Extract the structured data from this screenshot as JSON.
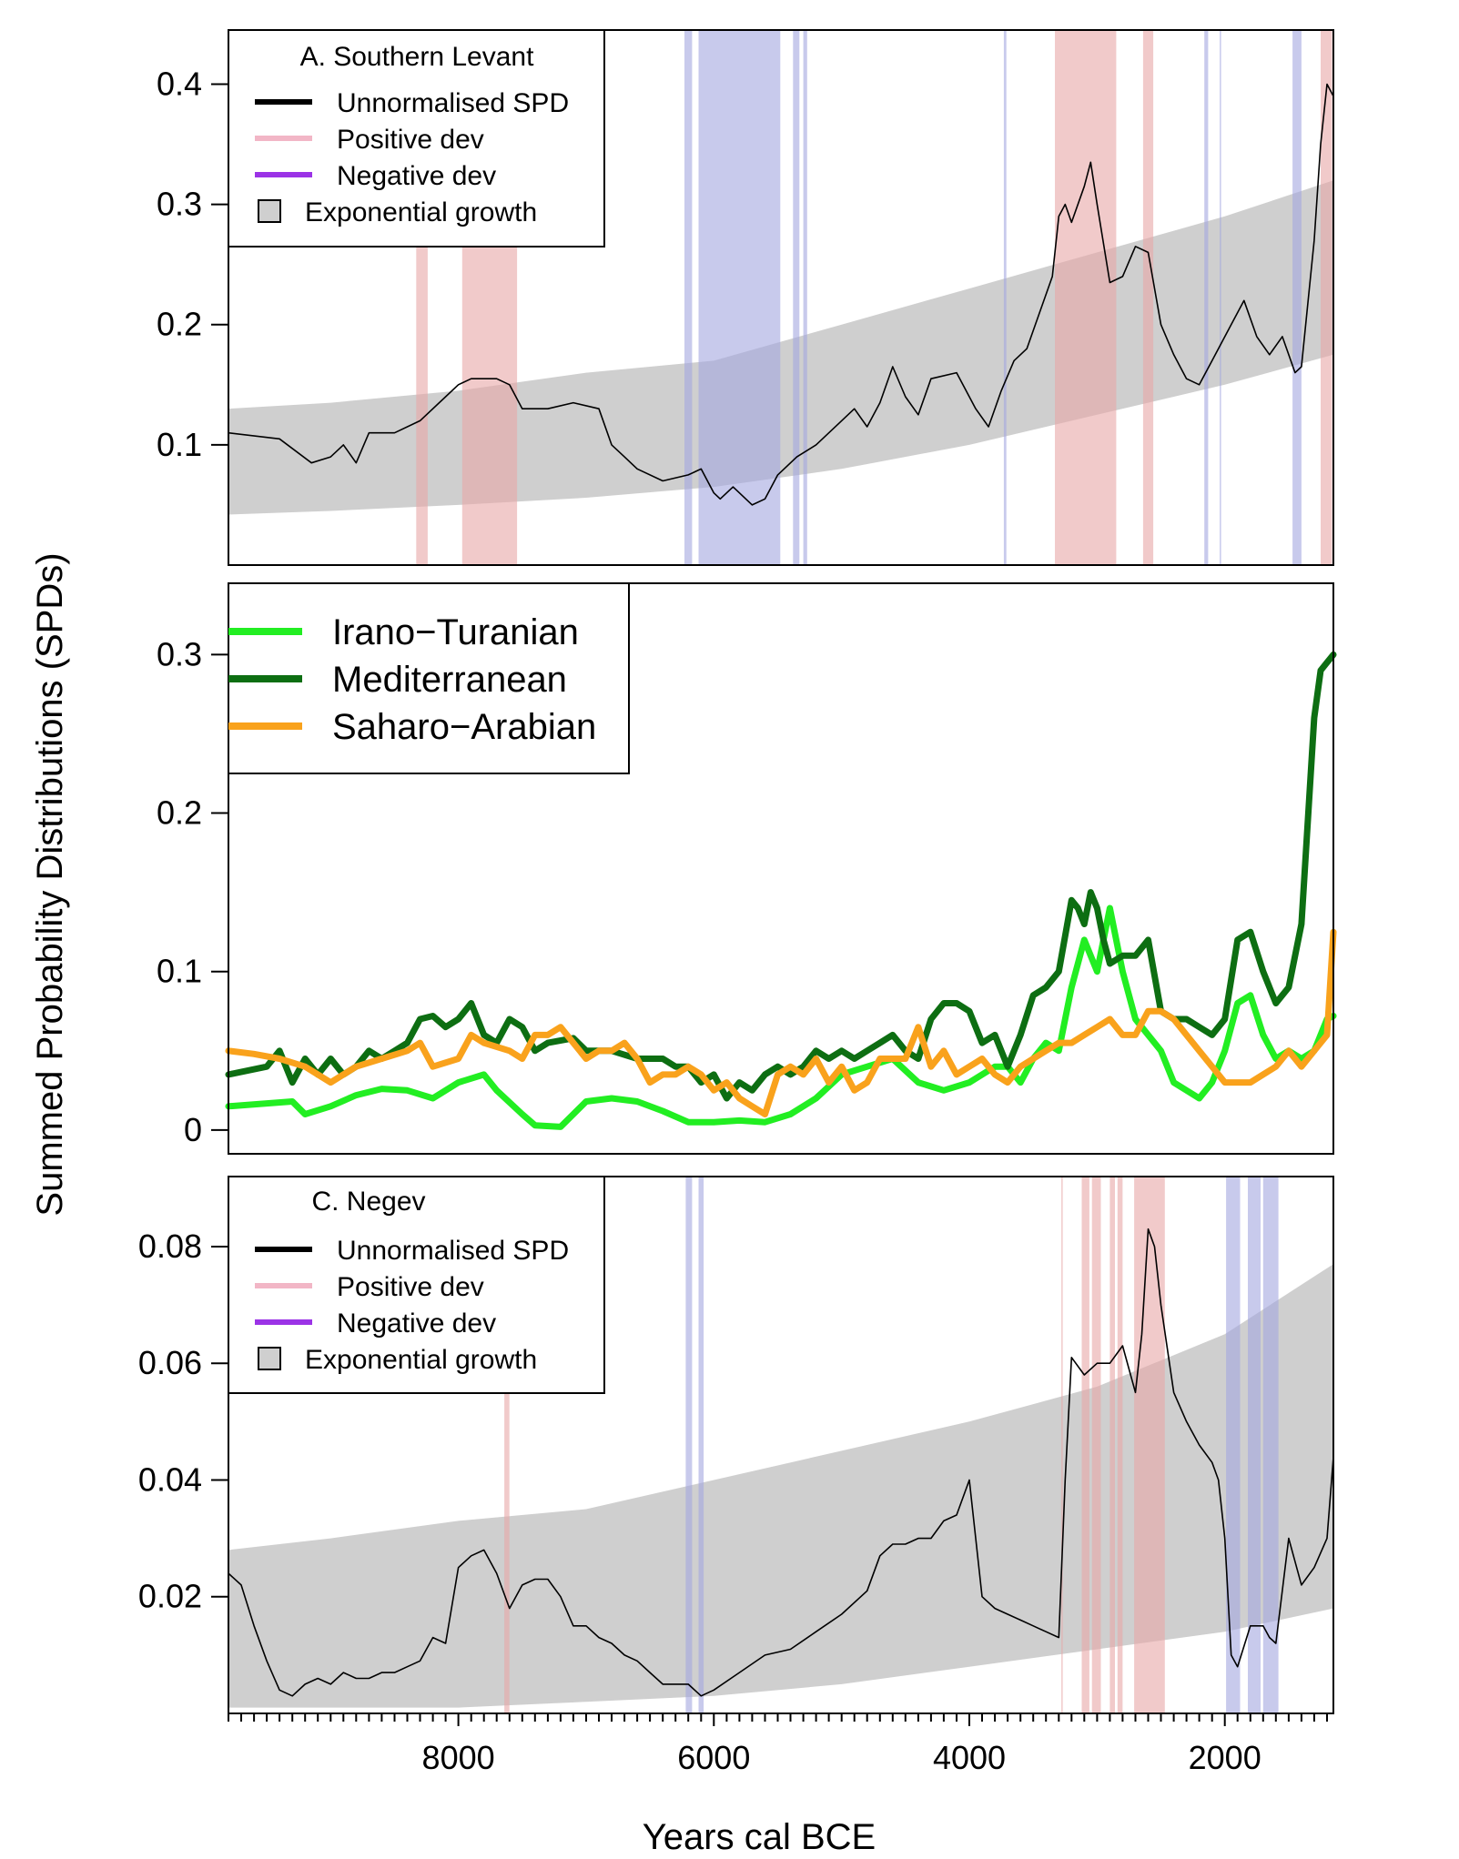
{
  "figure": {
    "ylabel": "Summed Probability Distributions (SPDs)",
    "xlabel": "Years cal BCE",
    "x_ticks": [
      8000,
      6000,
      4000,
      2000
    ],
    "colors": {
      "spd": "#000000",
      "positive_band": "#e8a7a7",
      "negative_band": "#a3a6e0",
      "growth_fill": "#cfcfcf",
      "legend_positive": "#f2b6c6",
      "legend_negative": "#9b33e6"
    }
  },
  "chart_data": [
    {
      "type": "line",
      "title": "A. Southern Levant",
      "legend": {
        "title": "A. Southern Levant",
        "entries": [
          "Unnormalised SPD",
          "Positive dev",
          "Negative dev",
          "Exponential growth"
        ]
      },
      "xlim": [
        9800,
        1150
      ],
      "ylim": [
        0.0,
        0.445
      ],
      "y_ticks": [
        0.1,
        0.2,
        0.3,
        0.4
      ],
      "y_tick_labels": [
        "0.1",
        "0.2",
        "0.3",
        "0.4"
      ],
      "positive_dev_ranges": [
        [
          8330,
          8240
        ],
        [
          7970,
          7540
        ],
        [
          3330,
          2850
        ],
        [
          2640,
          2560
        ],
        [
          1250,
          1160
        ]
      ],
      "negative_dev_ranges": [
        [
          6230,
          6170
        ],
        [
          6120,
          5480
        ],
        [
          5380,
          5330
        ],
        [
          5300,
          5270
        ],
        [
          3730,
          3710
        ],
        [
          2160,
          2130
        ],
        [
          2040,
          2030
        ],
        [
          1470,
          1400
        ]
      ],
      "growth_envelope": {
        "x": [
          9800,
          9000,
          8000,
          7000,
          6000,
          5000,
          4000,
          3000,
          2000,
          1150
        ],
        "upper": [
          0.13,
          0.135,
          0.145,
          0.16,
          0.17,
          0.2,
          0.23,
          0.26,
          0.29,
          0.32
        ],
        "lower": [
          0.042,
          0.045,
          0.05,
          0.056,
          0.065,
          0.08,
          0.1,
          0.125,
          0.15,
          0.175
        ]
      },
      "series": [
        {
          "name": "Unnormalised SPD",
          "x": [
            9800,
            9400,
            9150,
            9000,
            8900,
            8800,
            8700,
            8500,
            8300,
            8100,
            8000,
            7900,
            7800,
            7700,
            7600,
            7500,
            7300,
            7100,
            6900,
            6800,
            6700,
            6600,
            6400,
            6200,
            6100,
            6000,
            5950,
            5850,
            5700,
            5600,
            5500,
            5350,
            5200,
            5000,
            4900,
            4800,
            4700,
            4600,
            4500,
            4400,
            4300,
            4100,
            3950,
            3850,
            3750,
            3650,
            3550,
            3450,
            3350,
            3300,
            3250,
            3200,
            3100,
            3050,
            3000,
            2900,
            2800,
            2700,
            2600,
            2500,
            2400,
            2300,
            2200,
            2100,
            1950,
            1850,
            1750,
            1650,
            1550,
            1450,
            1400,
            1300,
            1250,
            1200,
            1150
          ],
          "y": [
            0.11,
            0.105,
            0.085,
            0.09,
            0.1,
            0.085,
            0.11,
            0.11,
            0.12,
            0.14,
            0.15,
            0.155,
            0.155,
            0.155,
            0.15,
            0.13,
            0.13,
            0.135,
            0.13,
            0.1,
            0.09,
            0.08,
            0.07,
            0.075,
            0.08,
            0.06,
            0.055,
            0.065,
            0.05,
            0.055,
            0.075,
            0.09,
            0.1,
            0.12,
            0.13,
            0.115,
            0.135,
            0.165,
            0.14,
            0.125,
            0.155,
            0.16,
            0.13,
            0.115,
            0.145,
            0.17,
            0.18,
            0.21,
            0.24,
            0.29,
            0.3,
            0.285,
            0.315,
            0.335,
            0.3,
            0.235,
            0.24,
            0.265,
            0.26,
            0.2,
            0.175,
            0.155,
            0.15,
            0.17,
            0.2,
            0.22,
            0.19,
            0.175,
            0.19,
            0.16,
            0.165,
            0.27,
            0.35,
            0.4,
            0.39
          ]
        }
      ]
    },
    {
      "type": "line",
      "legend": {
        "entries": [
          "Irano−Turanian",
          "Mediterranean",
          "Saharo−Arabian"
        ]
      },
      "xlim": [
        9800,
        1150
      ],
      "ylim": [
        -0.015,
        0.345
      ],
      "y_ticks": [
        0.0,
        0.1,
        0.2,
        0.3
      ],
      "y_tick_labels": [
        "0",
        "0.1",
        "0.2",
        "0.3"
      ],
      "series": [
        {
          "name": "Irano−Turanian",
          "color": "#22ee22",
          "x": [
            9800,
            9300,
            9200,
            9000,
            8800,
            8600,
            8400,
            8200,
            8000,
            7800,
            7700,
            7500,
            7400,
            7200,
            7000,
            6800,
            6600,
            6400,
            6200,
            6000,
            5800,
            5600,
            5400,
            5200,
            5000,
            4800,
            4600,
            4400,
            4200,
            4000,
            3800,
            3700,
            3600,
            3500,
            3400,
            3300,
            3200,
            3100,
            3000,
            2900,
            2800,
            2700,
            2600,
            2500,
            2400,
            2300,
            2200,
            2100,
            2000,
            1900,
            1800,
            1700,
            1600,
            1500,
            1400,
            1300,
            1200,
            1150
          ],
          "y": [
            0.015,
            0.018,
            0.01,
            0.015,
            0.022,
            0.026,
            0.025,
            0.02,
            0.03,
            0.035,
            0.025,
            0.01,
            0.003,
            0.002,
            0.018,
            0.02,
            0.018,
            0.012,
            0.005,
            0.005,
            0.006,
            0.005,
            0.01,
            0.02,
            0.035,
            0.04,
            0.045,
            0.03,
            0.025,
            0.03,
            0.04,
            0.04,
            0.03,
            0.045,
            0.055,
            0.05,
            0.09,
            0.12,
            0.1,
            0.14,
            0.1,
            0.07,
            0.06,
            0.05,
            0.03,
            0.025,
            0.02,
            0.03,
            0.05,
            0.08,
            0.085,
            0.06,
            0.045,
            0.05,
            0.045,
            0.05,
            0.07,
            0.072
          ]
        },
        {
          "name": "Mediterranean",
          "color": "#0d6e12",
          "x": [
            9800,
            9500,
            9400,
            9300,
            9200,
            9100,
            9000,
            8900,
            8800,
            8700,
            8600,
            8500,
            8400,
            8300,
            8200,
            8100,
            8000,
            7900,
            7800,
            7700,
            7600,
            7500,
            7400,
            7300,
            7100,
            7000,
            6800,
            6600,
            6400,
            6300,
            6200,
            6100,
            6000,
            5900,
            5800,
            5700,
            5600,
            5500,
            5400,
            5300,
            5200,
            5100,
            5000,
            4900,
            4800,
            4700,
            4600,
            4500,
            4400,
            4300,
            4200,
            4100,
            4000,
            3900,
            3800,
            3700,
            3600,
            3500,
            3400,
            3300,
            3200,
            3150,
            3100,
            3050,
            3000,
            2950,
            2900,
            2800,
            2700,
            2600,
            2500,
            2400,
            2300,
            2200,
            2100,
            2000,
            1900,
            1800,
            1700,
            1600,
            1500,
            1400,
            1300,
            1250,
            1200,
            1150
          ],
          "y": [
            0.035,
            0.04,
            0.05,
            0.03,
            0.045,
            0.035,
            0.045,
            0.035,
            0.04,
            0.05,
            0.045,
            0.05,
            0.055,
            0.07,
            0.072,
            0.065,
            0.07,
            0.08,
            0.06,
            0.055,
            0.07,
            0.065,
            0.05,
            0.055,
            0.058,
            0.05,
            0.05,
            0.045,
            0.045,
            0.04,
            0.04,
            0.03,
            0.035,
            0.02,
            0.03,
            0.025,
            0.035,
            0.04,
            0.035,
            0.04,
            0.05,
            0.045,
            0.05,
            0.045,
            0.05,
            0.055,
            0.06,
            0.05,
            0.045,
            0.07,
            0.08,
            0.08,
            0.075,
            0.055,
            0.06,
            0.04,
            0.06,
            0.085,
            0.09,
            0.1,
            0.145,
            0.14,
            0.13,
            0.15,
            0.14,
            0.12,
            0.105,
            0.11,
            0.11,
            0.12,
            0.075,
            0.07,
            0.07,
            0.065,
            0.06,
            0.07,
            0.12,
            0.125,
            0.1,
            0.08,
            0.09,
            0.13,
            0.26,
            0.29,
            0.295,
            0.3
          ]
        },
        {
          "name": "Saharo−Arabian",
          "color": "#f9a21c",
          "x": [
            9800,
            9600,
            9400,
            9200,
            9100,
            9000,
            8900,
            8800,
            8600,
            8400,
            8300,
            8200,
            8000,
            7900,
            7800,
            7600,
            7500,
            7400,
            7300,
            7200,
            7100,
            7000,
            6900,
            6800,
            6700,
            6600,
            6500,
            6400,
            6300,
            6200,
            6100,
            6000,
            5900,
            5800,
            5700,
            5600,
            5500,
            5400,
            5300,
            5200,
            5100,
            5000,
            4900,
            4800,
            4700,
            4600,
            4500,
            4400,
            4300,
            4200,
            4100,
            4000,
            3900,
            3800,
            3700,
            3600,
            3500,
            3400,
            3300,
            3200,
            3100,
            3000,
            2900,
            2800,
            2700,
            2600,
            2500,
            2400,
            2300,
            2200,
            2100,
            2000,
            1900,
            1800,
            1700,
            1600,
            1500,
            1400,
            1300,
            1200,
            1150
          ],
          "y": [
            0.05,
            0.048,
            0.045,
            0.04,
            0.035,
            0.03,
            0.035,
            0.04,
            0.045,
            0.05,
            0.055,
            0.04,
            0.045,
            0.06,
            0.055,
            0.05,
            0.045,
            0.06,
            0.06,
            0.065,
            0.055,
            0.045,
            0.05,
            0.05,
            0.055,
            0.045,
            0.03,
            0.035,
            0.035,
            0.04,
            0.035,
            0.025,
            0.03,
            0.02,
            0.015,
            0.01,
            0.035,
            0.04,
            0.035,
            0.045,
            0.03,
            0.04,
            0.025,
            0.03,
            0.045,
            0.045,
            0.045,
            0.065,
            0.04,
            0.05,
            0.035,
            0.04,
            0.045,
            0.035,
            0.03,
            0.04,
            0.045,
            0.05,
            0.055,
            0.055,
            0.06,
            0.065,
            0.07,
            0.06,
            0.06,
            0.075,
            0.075,
            0.07,
            0.06,
            0.05,
            0.04,
            0.03,
            0.03,
            0.03,
            0.035,
            0.04,
            0.05,
            0.04,
            0.05,
            0.06,
            0.125
          ]
        }
      ]
    },
    {
      "type": "line",
      "title": "C. Negev",
      "legend": {
        "title": "C. Negev",
        "entries": [
          "Unnormalised SPD",
          "Positive dev",
          "Negative dev",
          "Exponential growth"
        ]
      },
      "xlim": [
        9800,
        1150
      ],
      "ylim": [
        0.0,
        0.092
      ],
      "y_ticks": [
        0.02,
        0.04,
        0.06,
        0.08
      ],
      "y_tick_labels": [
        "0.02",
        "0.04",
        "0.06",
        "0.08"
      ],
      "positive_dev_ranges": [
        [
          7640,
          7600
        ],
        [
          3280,
          3270
        ],
        [
          3120,
          3060
        ],
        [
          3040,
          2970
        ],
        [
          2900,
          2860
        ],
        [
          2840,
          2800
        ],
        [
          2710,
          2470
        ]
      ],
      "negative_dev_ranges": [
        [
          6220,
          6170
        ],
        [
          6120,
          6080
        ],
        [
          1990,
          1880
        ],
        [
          1820,
          1720
        ],
        [
          1700,
          1580
        ]
      ],
      "growth_envelope": {
        "x": [
          9800,
          9000,
          8000,
          7000,
          6000,
          5000,
          4000,
          3000,
          2000,
          1150
        ],
        "upper": [
          0.028,
          0.03,
          0.033,
          0.035,
          0.04,
          0.045,
          0.05,
          0.056,
          0.065,
          0.077
        ],
        "lower": [
          0.001,
          0.001,
          0.001,
          0.002,
          0.003,
          0.005,
          0.008,
          0.011,
          0.014,
          0.018
        ]
      },
      "series": [
        {
          "name": "Unnormalised SPD",
          "x": [
            9800,
            9700,
            9600,
            9500,
            9400,
            9300,
            9200,
            9100,
            9000,
            8900,
            8800,
            8700,
            8600,
            8500,
            8400,
            8300,
            8200,
            8100,
            8000,
            7900,
            7800,
            7700,
            7600,
            7550,
            7500,
            7400,
            7300,
            7200,
            7100,
            7000,
            6900,
            6800,
            6700,
            6600,
            6500,
            6400,
            6300,
            6200,
            6100,
            6000,
            5800,
            5600,
            5400,
            5200,
            5000,
            4800,
            4700,
            4600,
            4500,
            4400,
            4300,
            4200,
            4100,
            4000,
            3950,
            3900,
            3800,
            3700,
            3600,
            3500,
            3400,
            3300,
            3250,
            3200,
            3100,
            3000,
            2900,
            2800,
            2700,
            2650,
            2600,
            2550,
            2500,
            2400,
            2300,
            2200,
            2100,
            2050,
            2000,
            1950,
            1900,
            1800,
            1700,
            1650,
            1600,
            1500,
            1400,
            1300,
            1200,
            1150
          ],
          "y": [
            0.024,
            0.022,
            0.015,
            0.009,
            0.004,
            0.003,
            0.005,
            0.006,
            0.005,
            0.007,
            0.006,
            0.006,
            0.007,
            0.007,
            0.008,
            0.009,
            0.013,
            0.012,
            0.025,
            0.027,
            0.028,
            0.024,
            0.018,
            0.02,
            0.022,
            0.023,
            0.023,
            0.02,
            0.015,
            0.015,
            0.013,
            0.012,
            0.01,
            0.009,
            0.007,
            0.005,
            0.005,
            0.005,
            0.003,
            0.004,
            0.007,
            0.01,
            0.011,
            0.014,
            0.017,
            0.021,
            0.027,
            0.029,
            0.029,
            0.03,
            0.03,
            0.033,
            0.034,
            0.04,
            0.03,
            0.02,
            0.018,
            0.017,
            0.016,
            0.015,
            0.014,
            0.013,
            0.04,
            0.061,
            0.058,
            0.06,
            0.06,
            0.063,
            0.055,
            0.065,
            0.083,
            0.08,
            0.07,
            0.055,
            0.05,
            0.046,
            0.043,
            0.04,
            0.03,
            0.01,
            0.008,
            0.015,
            0.015,
            0.013,
            0.012,
            0.03,
            0.022,
            0.025,
            0.03,
            0.044
          ]
        }
      ]
    }
  ]
}
